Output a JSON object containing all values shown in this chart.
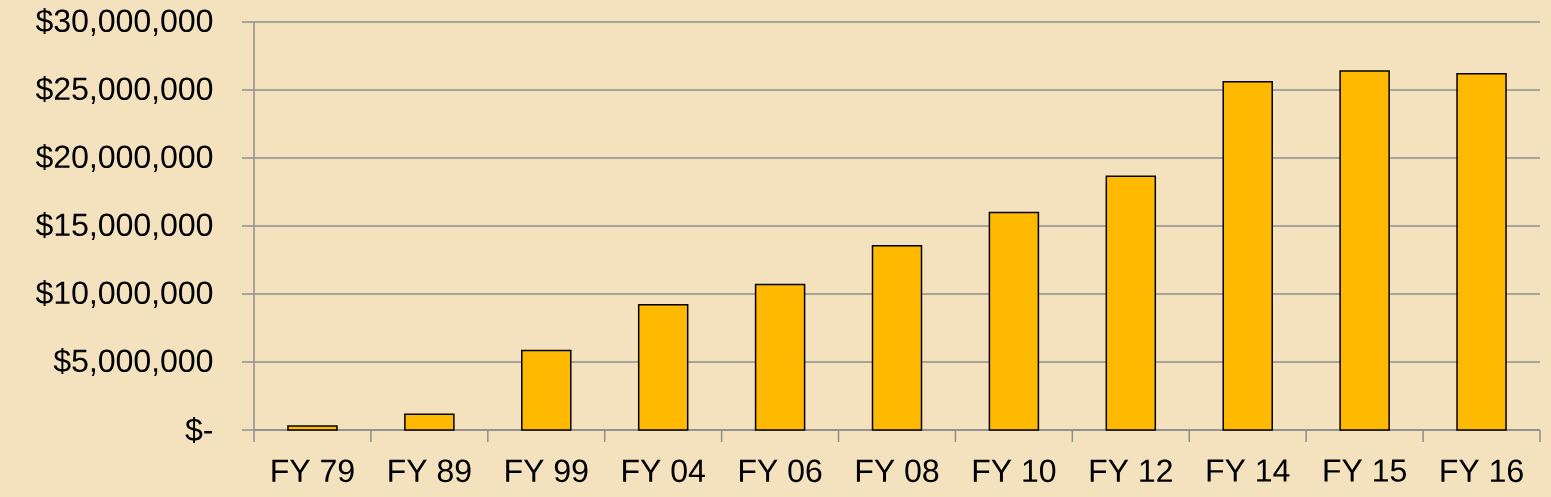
{
  "chart_data": {
    "type": "bar",
    "categories": [
      "FY 79",
      "FY 89",
      "FY 99",
      "FY 04",
      "FY 06",
      "FY 08",
      "FY 10",
      "FY 12",
      "FY 14",
      "FY 15",
      "FY 16"
    ],
    "values": [
      300000,
      1150000,
      5850000,
      9200000,
      10700000,
      13550000,
      16000000,
      18650000,
      25600000,
      26400000,
      26200000
    ],
    "color": "#ffb900",
    "ylim": [
      0,
      30000000
    ],
    "yticks": [
      {
        "value": 0,
        "label": "$-"
      },
      {
        "value": 5000000,
        "label": "$5,000,000"
      },
      {
        "value": 10000000,
        "label": "$10,000,000"
      },
      {
        "value": 15000000,
        "label": "$15,000,000"
      },
      {
        "value": 20000000,
        "label": "$20,000,000"
      },
      {
        "value": 25000000,
        "label": "$25,000,000"
      },
      {
        "value": 30000000,
        "label": "$30,000,000"
      }
    ],
    "grid": "y"
  }
}
